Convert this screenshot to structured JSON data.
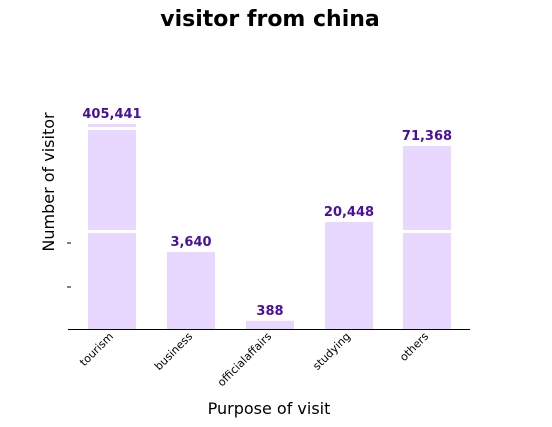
{
  "chart_data": {
    "type": "bar",
    "title": "visitor from china",
    "xlabel": "Purpose of visit",
    "ylabel": "Number of visitor",
    "categories": [
      "tourism",
      "business",
      "officialaffairs",
      "studying",
      "others"
    ],
    "values": [
      405441,
      3640,
      388,
      20448,
      71368
    ],
    "value_labels": [
      "405,441",
      "3,640",
      "388",
      "20,448",
      "71,368"
    ],
    "bar_color": "#e8d8ff",
    "label_color": "#4b0fa0",
    "axis_break": true,
    "grid": false,
    "legend": "none"
  }
}
